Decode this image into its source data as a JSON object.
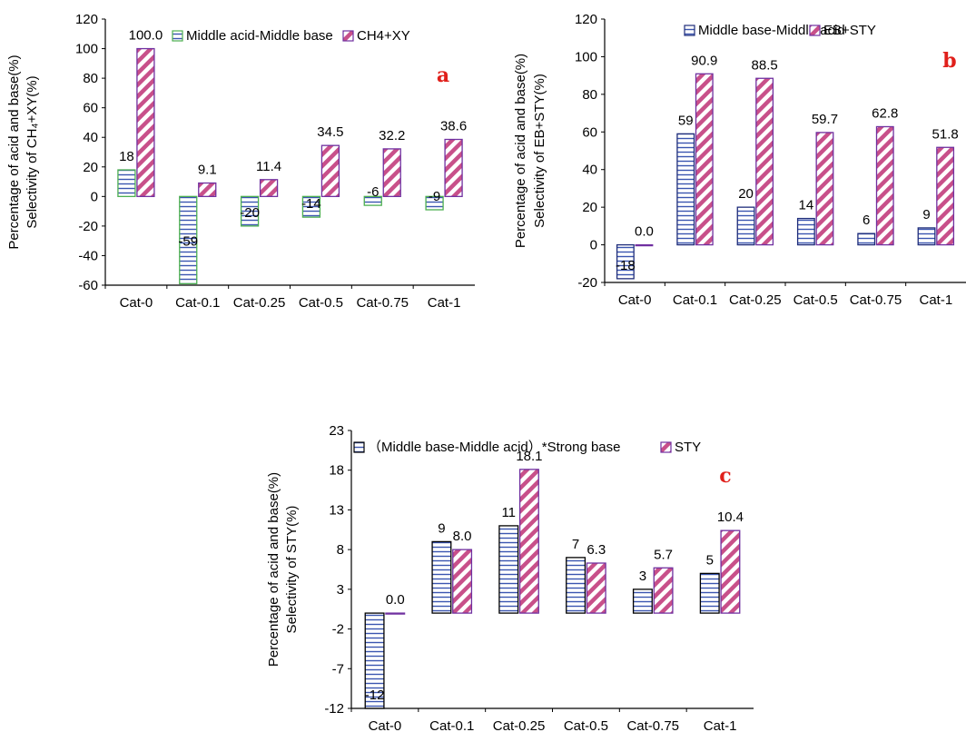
{
  "colors": {
    "green_border": "#4caf50",
    "navy_border": "#1f2d7a",
    "purple_border": "#7030a0",
    "hatch_blue": "#3a55b0",
    "hatch_pink": "#c8508a",
    "letter_red": "#e0201b",
    "axis": "#000000"
  },
  "chart_data": [
    {
      "type": "bar",
      "panel": "a",
      "ylabel_lines": [
        "Percentage of acid and base(%)",
        "Selectivity of CH₄+XY(%)"
      ],
      "categories": [
        "Cat-0",
        "Cat-0.1",
        "Cat-0.25",
        "Cat-0.5",
        "Cat-0.75",
        "Cat-1"
      ],
      "ylim": [
        -60,
        120
      ],
      "yticks": [
        -60,
        -40,
        -20,
        0,
        20,
        40,
        60,
        80,
        100,
        120
      ],
      "ytick_labels": [
        "-60",
        "-40",
        "-20",
        "0",
        "20",
        "40",
        "60",
        "80",
        "100",
        "120"
      ],
      "legend_position": "top-center",
      "series": [
        {
          "name": "Middle acid-Middle base",
          "values": [
            18,
            -59,
            -20,
            -14,
            -6,
            -9
          ],
          "labels": [
            "18",
            "-59",
            "-20",
            "-14",
            "-6",
            "-9"
          ],
          "pattern": "horizontal-lines",
          "border": "green"
        },
        {
          "name": "CH4+XY",
          "values": [
            100.0,
            9.1,
            11.4,
            34.5,
            32.2,
            38.6
          ],
          "labels": [
            "100.0",
            "9.1",
            "11.4",
            "34.5",
            "32.2",
            "38.6"
          ],
          "pattern": "diagonal-stripes",
          "border": "purple"
        }
      ]
    },
    {
      "type": "bar",
      "panel": "b",
      "ylabel_lines": [
        "Percentage of acid and base(%)",
        "Selectivity of EB+STY(%)"
      ],
      "categories": [
        "Cat-0",
        "Cat-0.1",
        "Cat-0.25",
        "Cat-0.5",
        "Cat-0.75",
        "Cat-1"
      ],
      "ylim": [
        -20,
        120
      ],
      "yticks": [
        -20,
        0,
        20,
        40,
        60,
        80,
        100,
        120
      ],
      "ytick_labels": [
        "-20",
        "0",
        "20",
        "40",
        "60",
        "80",
        "100",
        "120"
      ],
      "legend_position": "top-right",
      "series": [
        {
          "name": "Middle base-Middle acid",
          "values": [
            -18,
            59,
            20,
            14,
            6,
            9
          ],
          "labels": [
            "-18",
            "59",
            "20",
            "14",
            "6",
            "9"
          ],
          "pattern": "horizontal-lines",
          "border": "navy"
        },
        {
          "name": "EB+STY",
          "values": [
            0.0,
            90.9,
            88.5,
            59.7,
            62.8,
            51.8
          ],
          "labels": [
            "0.0",
            "90.9",
            "88.5",
            "59.7",
            "62.8",
            "51.8"
          ],
          "pattern": "diagonal-stripes",
          "border": "purple"
        }
      ]
    },
    {
      "type": "bar",
      "panel": "c",
      "ylabel_lines": [
        "Percentage of acid and base(%)",
        "Selectivity of STY(%)"
      ],
      "categories": [
        "Cat-0",
        "Cat-0.1",
        "Cat-0.25",
        "Cat-0.5",
        "Cat-0.75",
        "Cat-1"
      ],
      "ylim": [
        -12,
        23
      ],
      "yticks": [
        -12,
        -7,
        -2,
        3,
        8,
        13,
        18,
        23
      ],
      "ytick_labels": [
        "-12",
        "-7",
        "-2",
        "3",
        "8",
        "13",
        "18",
        "23"
      ],
      "legend_position": "top",
      "series": [
        {
          "name": "（Middle base-Middle acid）*Strong base",
          "values": [
            -12,
            9,
            11,
            7,
            3,
            5
          ],
          "labels": [
            "-12",
            "9",
            "11",
            "7",
            "3",
            "5"
          ],
          "pattern": "horizontal-lines",
          "border": "black"
        },
        {
          "name": "STY",
          "values": [
            0.0,
            8.0,
            18.1,
            6.3,
            5.7,
            10.4
          ],
          "labels": [
            "0.0",
            "8.0",
            "18.1",
            "6.3",
            "5.7",
            "10.4"
          ],
          "pattern": "diagonal-stripes",
          "border": "purple"
        }
      ]
    }
  ]
}
